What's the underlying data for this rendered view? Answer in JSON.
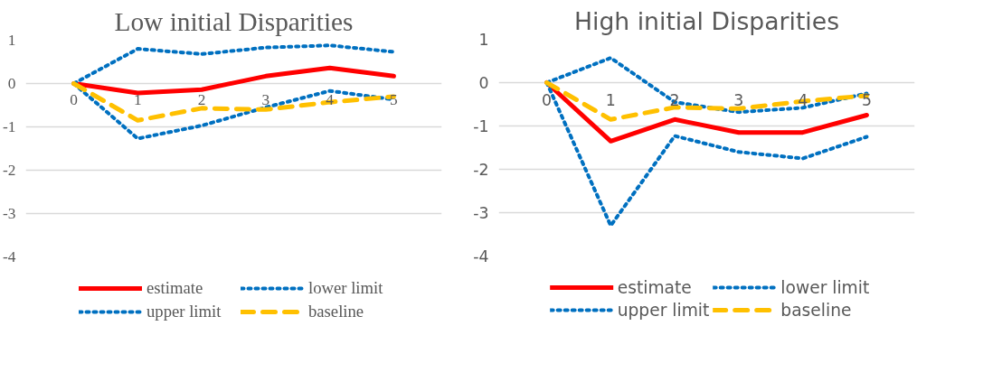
{
  "chart_data": [
    {
      "type": "line",
      "title": "Low initial Disparities",
      "categories": [
        "0",
        "1",
        "2",
        "3",
        "4",
        "5"
      ],
      "ylim": [
        -4,
        1
      ],
      "yticks": [
        -4,
        -3,
        -2,
        -1,
        0,
        1
      ],
      "grid": "y",
      "legend": "bottom",
      "series": [
        {
          "name": "estimate",
          "color": "#ff0000",
          "line_style": "solid",
          "values": [
            0,
            -0.22,
            -0.14,
            0.17,
            0.36,
            0.17
          ]
        },
        {
          "name": "lower limit",
          "color": "#0070c0",
          "line_style": "dotted",
          "values": [
            0,
            -1.27,
            -0.97,
            -0.55,
            -0.17,
            -0.37
          ]
        },
        {
          "name": "upper limit",
          "color": "#0070c0",
          "line_style": "dotted",
          "values": [
            0,
            0.8,
            0.68,
            0.83,
            0.88,
            0.73
          ]
        },
        {
          "name": "baseline",
          "color": "#ffc000",
          "line_style": "dashed",
          "values": [
            0,
            -0.85,
            -0.57,
            -0.6,
            -0.43,
            -0.3
          ]
        }
      ]
    },
    {
      "type": "line",
      "title": "High initial Disparities",
      "categories": [
        "0",
        "1",
        "2",
        "3",
        "4",
        "5"
      ],
      "ylim": [
        -4,
        1
      ],
      "yticks": [
        -4,
        -3,
        -2,
        -1,
        0,
        1
      ],
      "grid": "y",
      "legend": "bottom",
      "series": [
        {
          "name": "estimate",
          "color": "#ff0000",
          "line_style": "solid",
          "values": [
            0,
            -1.35,
            -0.85,
            -1.15,
            -1.15,
            -0.75
          ]
        },
        {
          "name": "lower limit",
          "color": "#0070c0",
          "line_style": "dotted",
          "values": [
            0,
            -3.3,
            -1.23,
            -1.6,
            -1.75,
            -1.25
          ]
        },
        {
          "name": "upper limit",
          "color": "#0070c0",
          "line_style": "dotted",
          "values": [
            0,
            0.57,
            -0.45,
            -0.68,
            -0.58,
            -0.25
          ]
        },
        {
          "name": "baseline",
          "color": "#ffc000",
          "line_style": "dashed",
          "values": [
            0,
            -0.85,
            -0.57,
            -0.6,
            -0.43,
            -0.3
          ]
        }
      ]
    }
  ]
}
